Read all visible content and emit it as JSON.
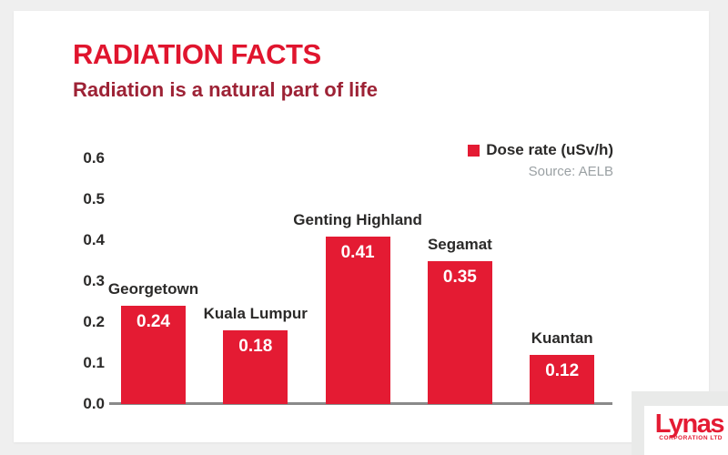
{
  "page": {
    "background_color": "#efefef",
    "card_color": "#ffffff"
  },
  "header": {
    "title": "RADIATION FACTS",
    "title_color": "#e0152e",
    "subtitle": "Radiation is a natural part of life",
    "subtitle_color": "#9d2235"
  },
  "legend": {
    "label": "Dose rate (uSv/h)",
    "swatch_color": "#e41b33",
    "source": "Source: AELB"
  },
  "chart_data": {
    "type": "bar",
    "title": "RADIATION FACTS",
    "subtitle": "Radiation is a natural part of life",
    "categories": [
      "Georgetown",
      "Kuala Lumpur",
      "Genting Highland",
      "Segamat",
      "Kuantan"
    ],
    "values": [
      0.24,
      0.18,
      0.41,
      0.35,
      0.12
    ],
    "value_labels": [
      "0.24",
      "0.18",
      "0.41",
      "0.35",
      "0.12"
    ],
    "series_name": "Dose rate (uSv/h)",
    "source": "Source: AELB",
    "xlabel": "",
    "ylabel": "",
    "ylim": [
      0,
      0.6
    ],
    "ytick_labels": [
      "0.0",
      "0.1",
      "0.2",
      "0.3",
      "0.4",
      "0.5",
      "0.6"
    ],
    "grid": false,
    "legend_position": "top-right",
    "bar_color": "#e41b33",
    "bar_value_text_color": "#ffffff",
    "category_label_position": "above-bar"
  },
  "logo": {
    "brand": "Lynas",
    "sub": "CORPORATION LTD",
    "color": "#e41b33"
  }
}
